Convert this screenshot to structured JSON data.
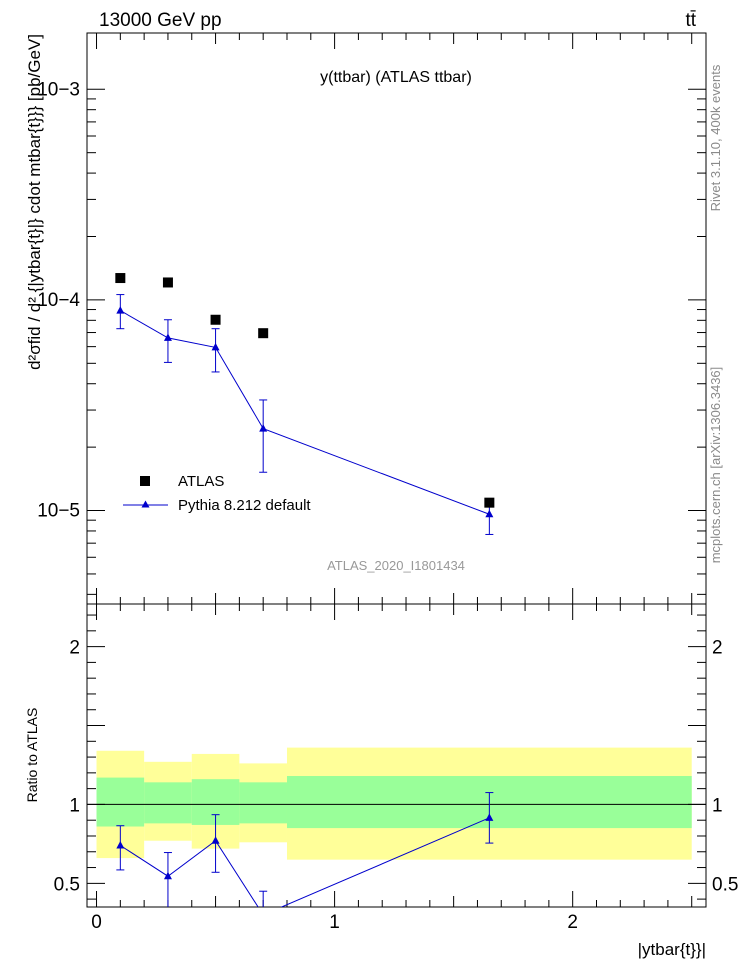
{
  "header": {
    "energy_label": "13000 GeV pp",
    "process_label": "tt̄"
  },
  "side_labels": {
    "rivet": "Rivet 3.1.10, 400k events",
    "mcplots": "mcplots.cern.ch [arXiv:1306.3436]"
  },
  "chart_data": [
    {
      "type": "scatter",
      "panel": "main",
      "title": "y(ttbar) (ATLAS ttbar)",
      "watermark": "ATLAS_2020_I1801434",
      "ylabel": "d²σfid / d² {|ytbar{t}|} cdot mtbar{t}}} [pb/GeV]",
      "yscale": "log",
      "ylim": [
        3.6e-06,
        0.00185
      ],
      "xlim": [
        -0.04,
        2.56
      ],
      "y_ticks": [
        {
          "value": 0.001,
          "label": "10−3"
        },
        {
          "value": 0.0001,
          "label": "10−4"
        },
        {
          "value": 1e-05,
          "label": "10−5"
        }
      ],
      "legend": {
        "position": "lower-left",
        "entries": [
          "ATLAS",
          "Pythia 8.212 default"
        ]
      },
      "series": [
        {
          "name": "ATLAS",
          "color": "#000000",
          "marker": "square",
          "x": [
            0.1,
            0.3,
            0.5,
            0.7,
            1.65
          ],
          "y": [
            0.000127,
            0.000121,
            8.05e-05,
            6.95e-05,
            1.09e-05
          ]
        },
        {
          "name": "Pythia 8.212 default",
          "color": "#0000cc",
          "marker": "triangle",
          "x": [
            0.1,
            0.3,
            0.5,
            0.7,
            1.65
          ],
          "y": [
            8.9e-05,
            6.6e-05,
            5.95e-05,
            2.45e-05,
            9.6e-06
          ],
          "y_low": [
            7.3e-05,
            5.05e-05,
            4.55e-05,
            1.52e-05,
            7.7e-06
          ],
          "y_high": [
            0.000106,
            8.05e-05,
            7.3e-05,
            3.35e-05,
            1.14e-05
          ]
        }
      ]
    },
    {
      "type": "line",
      "panel": "ratio",
      "ylabel": "Ratio to ATLAS",
      "xlabel": "|ytbar{t}}|",
      "ylim": [
        0.35,
        2.27
      ],
      "xlim": [
        -0.04,
        2.56
      ],
      "x_ticks": [
        0,
        1,
        2
      ],
      "y_ticks": [
        0.5,
        1,
        2
      ],
      "reference_line": 1,
      "bands": {
        "inner_color": "#99ff99",
        "outer_color": "#ffff99",
        "bins": [
          {
            "xlo": 0.0,
            "xhi": 0.2,
            "inner": [
              0.86,
              1.17
            ],
            "outer": [
              0.66,
              1.34
            ]
          },
          {
            "xlo": 0.2,
            "xhi": 0.4,
            "inner": [
              0.88,
              1.14
            ],
            "outer": [
              0.77,
              1.27
            ]
          },
          {
            "xlo": 0.4,
            "xhi": 0.6,
            "inner": [
              0.87,
              1.16
            ],
            "outer": [
              0.72,
              1.32
            ]
          },
          {
            "xlo": 0.6,
            "xhi": 0.8,
            "inner": [
              0.88,
              1.14
            ],
            "outer": [
              0.76,
              1.26
            ]
          },
          {
            "xlo": 0.8,
            "xhi": 2.5,
            "inner": [
              0.85,
              1.18
            ],
            "outer": [
              0.65,
              1.36
            ]
          }
        ]
      },
      "series": [
        {
          "name": "Pythia 8.212 default",
          "color": "#0000cc",
          "x": [
            0.1,
            0.3,
            0.5,
            0.7,
            1.65
          ],
          "y": [
            0.74,
            0.545,
            0.77,
            0.3,
            0.915
          ],
          "y_low": [
            0.585,
            0.345,
            0.57,
            0.2,
            0.755
          ],
          "y_high": [
            0.865,
            0.695,
            0.935,
            0.45,
            1.075
          ]
        }
      ]
    }
  ]
}
